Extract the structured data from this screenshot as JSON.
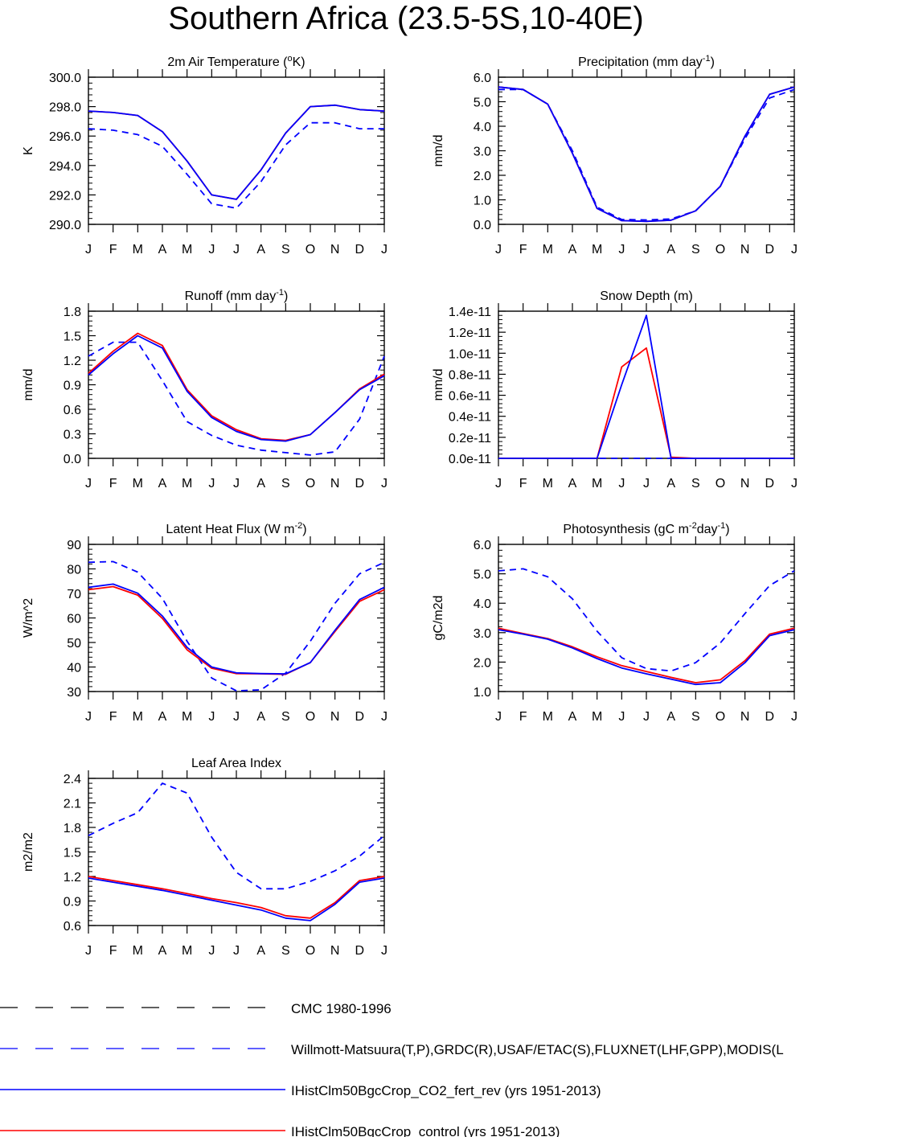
{
  "page": {
    "title": "Southern Africa (23.5-5S,10-40E)"
  },
  "colors": {
    "control": "#ff0000",
    "co2": "#0000ff",
    "obs": "#0000ff",
    "cmc": "#000000",
    "axis": "#000000"
  },
  "chart_data": [
    {
      "type": "line",
      "title": "2m Air Temperature (°K)",
      "ylabel": "K",
      "categories": [
        "J",
        "F",
        "M",
        "A",
        "M",
        "J",
        "J",
        "A",
        "S",
        "O",
        "N",
        "D",
        "J"
      ],
      "ylim": [
        290.0,
        300.0
      ],
      "yticks": [
        "290.0",
        "292.0",
        "294.0",
        "296.0",
        "298.0",
        "300.0"
      ],
      "series": [
        {
          "values": [
            297.7,
            297.6,
            297.4,
            296.3,
            294.3,
            292.0,
            291.7,
            293.7,
            296.2,
            298.0,
            298.1,
            297.8,
            297.7
          ]
        },
        {
          "values": [
            297.7,
            297.6,
            297.4,
            296.3,
            294.3,
            292.0,
            291.7,
            293.7,
            296.2,
            298.0,
            298.1,
            297.8,
            297.7
          ]
        },
        {
          "values": [
            296.5,
            296.4,
            296.1,
            295.3,
            293.4,
            291.4,
            291.1,
            292.9,
            295.4,
            296.9,
            296.9,
            296.5,
            296.5
          ]
        }
      ]
    },
    {
      "type": "line",
      "title": "Precipitation (mm day-1)",
      "ylabel": "mm/d",
      "categories": [
        "J",
        "F",
        "M",
        "A",
        "M",
        "J",
        "J",
        "A",
        "S",
        "O",
        "N",
        "D",
        "J"
      ],
      "ylim": [
        0.0,
        6.0
      ],
      "yticks": [
        "0.0",
        "1.0",
        "2.0",
        "3.0",
        "4.0",
        "5.0",
        "6.0"
      ],
      "series": [
        {
          "values": [
            5.6,
            5.5,
            4.9,
            2.9,
            0.65,
            0.15,
            0.12,
            0.17,
            0.55,
            1.55,
            3.6,
            5.3,
            5.6
          ]
        },
        {
          "values": [
            5.6,
            5.5,
            4.9,
            2.9,
            0.65,
            0.15,
            0.12,
            0.17,
            0.55,
            1.55,
            3.6,
            5.3,
            5.6
          ]
        },
        {
          "values": [
            5.5,
            5.5,
            4.9,
            3.0,
            0.7,
            0.2,
            0.18,
            0.22,
            0.55,
            1.55,
            3.5,
            5.15,
            5.5
          ]
        }
      ]
    },
    {
      "type": "line",
      "title": "Runoff (mm day-1)",
      "ylabel": "mm/d",
      "categories": [
        "J",
        "F",
        "M",
        "A",
        "M",
        "J",
        "J",
        "A",
        "S",
        "O",
        "N",
        "D",
        "J"
      ],
      "ylim": [
        0.0,
        1.8
      ],
      "yticks": [
        "0.0",
        "0.3",
        "0.6",
        "0.9",
        "1.2",
        "1.5",
        "1.8"
      ],
      "series": [
        {
          "values": [
            1.04,
            1.31,
            1.53,
            1.38,
            0.84,
            0.52,
            0.35,
            0.24,
            0.22,
            0.29,
            0.56,
            0.85,
            1.03
          ]
        },
        {
          "values": [
            1.02,
            1.28,
            1.5,
            1.35,
            0.82,
            0.5,
            0.33,
            0.23,
            0.21,
            0.29,
            0.56,
            0.84,
            1.01
          ]
        },
        {
          "values": [
            1.25,
            1.42,
            1.42,
            0.95,
            0.45,
            0.28,
            0.16,
            0.1,
            0.07,
            0.04,
            0.08,
            0.48,
            1.25
          ]
        }
      ]
    },
    {
      "type": "line",
      "title": "Snow Depth (m)",
      "ylabel": "mm/d",
      "categories": [
        "J",
        "F",
        "M",
        "A",
        "M",
        "J",
        "J",
        "A",
        "S",
        "O",
        "N",
        "D",
        "J"
      ],
      "ylim": [
        0.0,
        1.4e-11
      ],
      "yticks": [
        "0.0e-11",
        "0.2e-11",
        "0.4e-11",
        "0.6e-11",
        "0.8e-11",
        "1.0e-11",
        "1.2e-11",
        "1.4e-11"
      ],
      "series": [
        {
          "values": [
            0,
            0,
            0,
            0,
            0,
            8.7e-12,
            1.05e-11,
            1e-13,
            0,
            0,
            0,
            0,
            0
          ]
        },
        {
          "values": [
            0,
            0,
            0,
            0,
            0,
            7e-12,
            1.36e-11,
            0,
            0,
            0,
            0,
            0,
            0
          ]
        },
        {
          "values": [
            0,
            0,
            0,
            0,
            0,
            0,
            0,
            0,
            0,
            0,
            0,
            0,
            0
          ]
        }
      ]
    },
    {
      "type": "line",
      "title": "Latent Heat Flux (W m-2)",
      "ylabel": "W/m^2",
      "categories": [
        "J",
        "F",
        "M",
        "A",
        "M",
        "J",
        "J",
        "A",
        "S",
        "O",
        "N",
        "D",
        "J"
      ],
      "ylim": [
        30,
        90
      ],
      "yticks": [
        "30",
        "40",
        "50",
        "60",
        "70",
        "80",
        "90"
      ],
      "series": [
        {
          "values": [
            71.5,
            72.8,
            69.3,
            59.8,
            47.0,
            39.5,
            37.3,
            37.2,
            37.0,
            41.8,
            54.5,
            66.8,
            71.5
          ]
        },
        {
          "values": [
            72.5,
            73.8,
            70.1,
            60.8,
            48.0,
            40.0,
            37.6,
            37.3,
            37.2,
            41.8,
            55.0,
            67.5,
            72.5
          ]
        },
        {
          "values": [
            82.7,
            83.0,
            78.7,
            68.0,
            50.5,
            35.5,
            30.3,
            30.7,
            37.5,
            50.5,
            66.0,
            78.0,
            82.7
          ]
        }
      ]
    },
    {
      "type": "line",
      "title": "Photosynthesis (gC m-2day-1)",
      "ylabel": "gC/m2d",
      "categories": [
        "J",
        "F",
        "M",
        "A",
        "M",
        "J",
        "J",
        "A",
        "S",
        "O",
        "N",
        "D",
        "J"
      ],
      "ylim": [
        1.0,
        6.0
      ],
      "yticks": [
        "1.0",
        "2.0",
        "3.0",
        "4.0",
        "5.0",
        "6.0"
      ],
      "series": [
        {
          "values": [
            3.15,
            2.97,
            2.8,
            2.52,
            2.18,
            1.88,
            1.68,
            1.48,
            1.3,
            1.4,
            2.05,
            2.95,
            3.15
          ]
        },
        {
          "values": [
            3.1,
            2.95,
            2.78,
            2.48,
            2.12,
            1.8,
            1.6,
            1.42,
            1.24,
            1.3,
            1.98,
            2.9,
            3.1
          ]
        },
        {
          "values": [
            5.1,
            5.17,
            4.9,
            4.15,
            3.05,
            2.15,
            1.78,
            1.7,
            1.98,
            2.65,
            3.65,
            4.6,
            5.1
          ]
        }
      ]
    },
    {
      "type": "line",
      "title": "Leaf Area Index",
      "ylabel": "m2/m2",
      "categories": [
        "J",
        "F",
        "M",
        "A",
        "M",
        "J",
        "J",
        "A",
        "S",
        "O",
        "N",
        "D",
        "J"
      ],
      "ylim": [
        0.6,
        2.4
      ],
      "yticks": [
        "0.6",
        "0.9",
        "1.2",
        "1.5",
        "1.8",
        "2.1",
        "2.4"
      ],
      "series": [
        {
          "values": [
            1.2,
            1.15,
            1.1,
            1.05,
            0.99,
            0.93,
            0.88,
            0.82,
            0.72,
            0.69,
            0.88,
            1.15,
            1.2
          ]
        },
        {
          "values": [
            1.18,
            1.13,
            1.08,
            1.03,
            0.97,
            0.91,
            0.85,
            0.79,
            0.69,
            0.66,
            0.86,
            1.13,
            1.18
          ]
        },
        {
          "values": [
            1.7,
            1.85,
            1.98,
            2.34,
            2.22,
            1.68,
            1.25,
            1.05,
            1.05,
            1.14,
            1.27,
            1.45,
            1.7
          ]
        }
      ]
    }
  ],
  "legend": {
    "items": [
      {
        "label": "CMC 1980-1996"
      },
      {
        "label": "Willmott-Matsuura(T,P),GRDC(R),USAF/ETAC(S),FLUXNET(LHF,GPP),MODIS(L"
      },
      {
        "label": "IHistClm50BgcCrop_CO2_fert_rev (yrs 1951-2013)"
      },
      {
        "label": "IHistClm50BgcCrop_control (yrs 1951-2013)"
      }
    ]
  }
}
